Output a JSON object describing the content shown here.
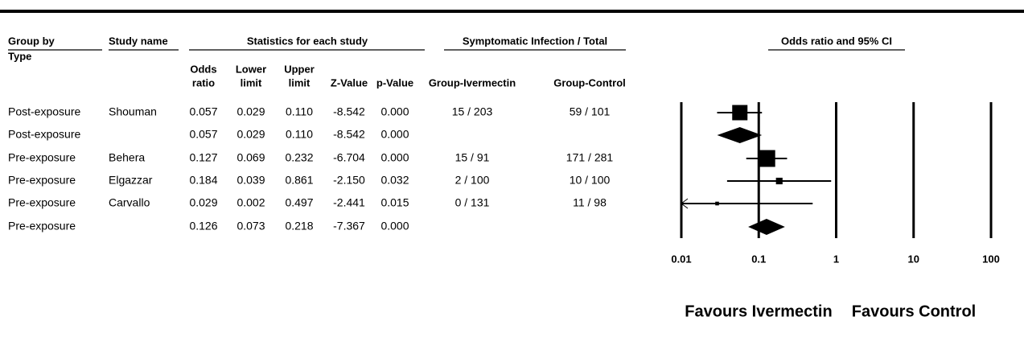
{
  "chart_data": {
    "type": "forest",
    "group_header": [
      "Group by",
      "Type"
    ],
    "study_header": "Study name",
    "stats_header": "Statistics for each study",
    "infection_header": "Symptomatic Infection / Total",
    "plot_header": "Odds ratio and 95% CI",
    "columns": [
      [
        "Odds",
        "ratio"
      ],
      [
        "Lower",
        "limit"
      ],
      [
        "Upper",
        "limit"
      ],
      [
        "Z-Value"
      ],
      [
        "p-Value"
      ],
      [
        "Group-Ivermectin"
      ],
      [
        "Group-Control"
      ]
    ],
    "rows": [
      {
        "group": "Post-exposure",
        "study": "Shouman",
        "values": [
          0.057,
          0.029,
          0.11,
          -8.542,
          0
        ],
        "value_labels": [
          "0.057",
          "0.029",
          "0.110",
          "-8.542",
          "0.000"
        ],
        "ivermectin": "15 / 203",
        "control": "59 / 101"
      },
      {
        "group": "Post-exposure",
        "study": null,
        "values": [
          0.057,
          0.029,
          0.11,
          -8.542,
          0
        ],
        "value_labels": [
          "0.057",
          "0.029",
          "0.110",
          "-8.542",
          "0.000"
        ],
        "ivermectin": null,
        "control": null
      },
      {
        "group": "Pre-exposure",
        "study": "Behera",
        "values": [
          0.127,
          0.069,
          0.232,
          -6.704,
          0
        ],
        "value_labels": [
          "0.127",
          "0.069",
          "0.232",
          "-6.704",
          "0.000"
        ],
        "ivermectin": "15 / 91",
        "control": "171 / 281"
      },
      {
        "group": "Pre-exposure",
        "study": "Elgazzar",
        "values": [
          0.184,
          0.039,
          0.861,
          -2.15,
          0.032
        ],
        "value_labels": [
          "0.184",
          "0.039",
          "0.861",
          "-2.150",
          "0.032"
        ],
        "ivermectin": "2 / 100",
        "control": "10 / 100"
      },
      {
        "group": "Pre-exposure",
        "study": "Carvallo",
        "values": [
          0.029,
          0.002,
          0.497,
          -2.441,
          0.015
        ],
        "value_labels": [
          "0.029",
          "0.002",
          "0.497",
          "-2.441",
          "0.015"
        ],
        "ivermectin": "0 / 131",
        "control": "11 / 98"
      },
      {
        "group": "Pre-exposure",
        "study": null,
        "values": [
          0.126,
          0.073,
          0.218,
          -7.367,
          0
        ],
        "value_labels": [
          "0.126",
          "0.073",
          "0.218",
          "-7.367",
          "0.000"
        ],
        "ivermectin": null,
        "control": null
      }
    ],
    "xlim": [
      0.01,
      100
    ],
    "xticks": [
      0.01,
      0.1,
      1,
      10,
      100
    ],
    "log_x": true,
    "color": "#000000",
    "favours_left": "Favours Ivermectin",
    "favours_right": "Favours Control"
  }
}
